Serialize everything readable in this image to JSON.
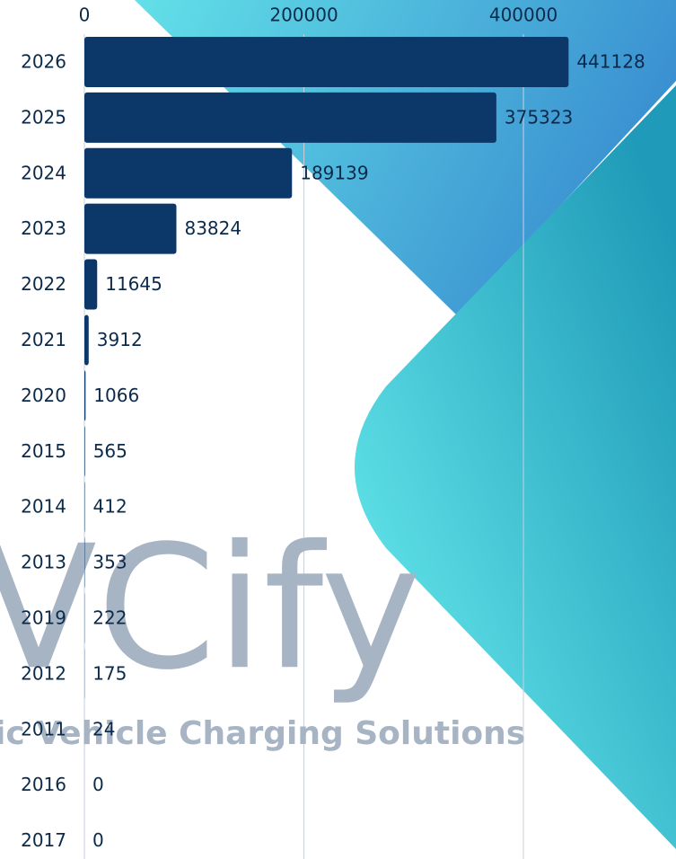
{
  "chart_data": {
    "type": "bar",
    "orientation": "horizontal",
    "categories": [
      "2026",
      "2025",
      "2024",
      "2023",
      "2022",
      "2021",
      "2020",
      "2015",
      "2014",
      "2013",
      "2019",
      "2012",
      "2011",
      "2016",
      "2017"
    ],
    "values": [
      441128,
      375323,
      189139,
      83824,
      11645,
      3912,
      1066,
      565,
      412,
      353,
      222,
      175,
      24,
      0,
      0
    ],
    "color": "#0b3769",
    "xlim": [
      0,
      539000
    ],
    "xticks": [
      0,
      200000,
      400000
    ],
    "grid": true,
    "watermark": "VCify",
    "watermark_subtitle": "ic Vehicle Charging Solutions"
  }
}
